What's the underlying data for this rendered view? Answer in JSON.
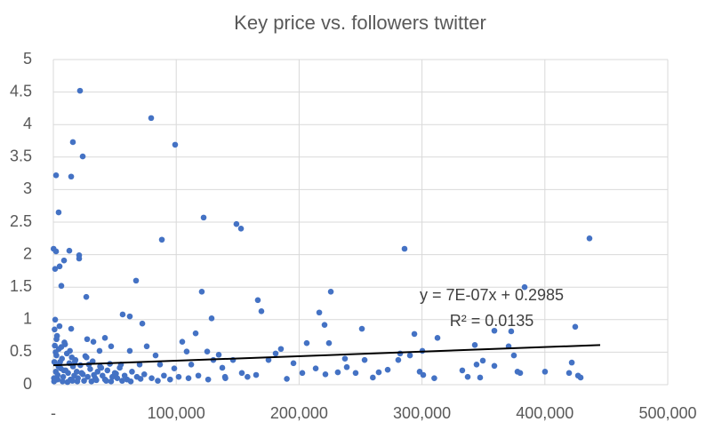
{
  "chart_data": {
    "type": "scatter",
    "title": "Key price vs. followers twitter",
    "xlim": [
      0,
      500000
    ],
    "xticks": [
      {
        "value": 0,
        "label": "-"
      },
      {
        "value": 100000,
        "label": "100,000"
      },
      {
        "value": 200000,
        "label": "200,000"
      },
      {
        "value": 300000,
        "label": "300,000"
      },
      {
        "value": 400000,
        "label": "400,000"
      },
      {
        "value": 500000,
        "label": "500,000"
      }
    ],
    "ylim": [
      0,
      5
    ],
    "yticks": [
      0,
      0.5,
      1,
      1.5,
      2,
      2.5,
      3,
      3.5,
      4,
      4.5,
      5
    ],
    "grid": true,
    "series": [
      {
        "color": "#4472c4",
        "x": [
          21700,
          79600,
          99100,
          15900,
          23900,
          14500,
          2200,
          4300,
          122300,
          149000,
          152700,
          88300,
          436300,
          285800,
          200,
          2200,
          21000,
          21000,
          13000,
          8700,
          5100,
          1400,
          67300,
          6500,
          383500,
          120800,
          225800,
          26800,
          166400,
          169300,
          128800,
          216400,
          56400,
          62200,
          424700,
          251100,
          72400,
          115800,
          220700,
          372600,
          293800,
          358900,
          312600,
          224300,
          206200,
          343000,
          370500,
          374800,
          349500,
          344400,
          300300,
          290200,
          282200,
          280700,
          298100,
          301000,
          332800,
          358900,
          377700,
          400100,
          419700,
          421900,
          427000,
          429100,
          337200,
          347300,
          379900,
          180900,
          185200,
          175100,
          195400,
          237300,
          253300,
          272100,
          264800,
          238800,
          246000,
          213500,
          221400,
          231500,
          202600,
          165000,
          153400,
          137500,
          130200,
          125200,
          134600,
          146200,
          139700,
          112200,
          108500,
          104900,
          98400,
          86800,
          83200,
          76000,
          70200,
          62200,
          55000,
          47000,
          42000,
          37600,
          32600,
          27500,
          28900,
          14500,
          500,
          800,
          1200,
          1500,
          2000,
          2500,
          3000,
          3500,
          4000,
          4500,
          5000,
          6000,
          7000,
          8000,
          9000,
          10000,
          11000,
          12000,
          13000,
          14000,
          15000,
          16000,
          17000,
          18000,
          19000,
          20000,
          22000,
          24000,
          26000,
          28000,
          30000,
          32000,
          34000,
          36000,
          38000,
          40000,
          42000,
          44000,
          46000,
          48000,
          50000,
          52000,
          54000,
          58000,
          60000,
          64000,
          68000,
          74000,
          80000,
          90000,
          95000,
          102000,
          110000,
          118000,
          126000,
          140000,
          158000,
          190000,
          260000,
          310000,
          600,
          1000,
          1800,
          2600,
          3400,
          4200,
          5500,
          6500,
          7500,
          8500,
          9500,
          11500,
          13500,
          15500,
          17500,
          19500,
          23000,
          25000,
          27000,
          31000,
          33000,
          35000,
          39000,
          43000,
          47000,
          51000,
          56000,
          63000,
          71000,
          85000
        ],
        "values": [
          4.52,
          4.1,
          3.69,
          3.73,
          3.51,
          3.2,
          3.22,
          2.65,
          2.57,
          2.47,
          2.4,
          2.23,
          2.25,
          2.09,
          2.09,
          2.05,
          1.99,
          1.94,
          2.06,
          1.91,
          1.82,
          1.78,
          1.6,
          1.52,
          1.5,
          1.43,
          1.43,
          1.35,
          1.3,
          1.13,
          1.02,
          1.11,
          1.08,
          1.05,
          0.89,
          0.86,
          0.94,
          0.79,
          0.92,
          0.82,
          0.78,
          0.83,
          0.72,
          0.64,
          0.64,
          0.61,
          0.59,
          0.45,
          0.37,
          0.31,
          0.52,
          0.45,
          0.48,
          0.38,
          0.2,
          0.15,
          0.22,
          0.29,
          0.2,
          0.2,
          0.18,
          0.34,
          0.14,
          0.11,
          0.12,
          0.11,
          0.18,
          0.48,
          0.55,
          0.38,
          0.33,
          0.4,
          0.38,
          0.23,
          0.19,
          0.27,
          0.18,
          0.25,
          0.16,
          0.19,
          0.18,
          0.15,
          0.18,
          0.26,
          0.38,
          0.51,
          0.46,
          0.38,
          0.12,
          0.31,
          0.51,
          0.66,
          0.25,
          0.31,
          0.45,
          0.59,
          0.31,
          0.52,
          0.31,
          0.59,
          0.72,
          0.52,
          0.66,
          0.7,
          0.31,
          0.86,
          0.1,
          0.35,
          0.6,
          1.0,
          0.2,
          0.45,
          0.75,
          0.15,
          0.3,
          0.55,
          0.9,
          0.25,
          0.4,
          0.12,
          0.65,
          0.22,
          0.48,
          0.18,
          0.33,
          0.08,
          0.42,
          0.28,
          0.14,
          0.38,
          0.2,
          0.1,
          0.3,
          0.16,
          0.44,
          0.12,
          0.24,
          0.36,
          0.1,
          0.2,
          0.28,
          0.14,
          0.08,
          0.22,
          0.32,
          0.12,
          0.18,
          0.1,
          0.26,
          0.14,
          0.08,
          0.2,
          0.12,
          0.16,
          0.1,
          0.14,
          0.08,
          0.12,
          0.1,
          0.14,
          0.08,
          0.1,
          0.12,
          0.09,
          0.11,
          0.1,
          0.05,
          0.85,
          0.5,
          0.7,
          0.08,
          0.28,
          0.35,
          0.58,
          0.05,
          0.22,
          0.62,
          0.04,
          0.52,
          0.06,
          0.35,
          0.05,
          0.18,
          0.06,
          0.42,
          0.05,
          0.15,
          0.07,
          0.26,
          0.06,
          0.05,
          0.17,
          0.06,
          0.05,
          0.09,
          0.06
        ]
      }
    ],
    "trendline": {
      "color": "#000000",
      "x": [
        0,
        445000
      ],
      "values": [
        0.2985,
        0.61
      ]
    },
    "annotations": [
      "y = 7E-07x + 0.2985",
      "R² = 0.0135"
    ]
  }
}
